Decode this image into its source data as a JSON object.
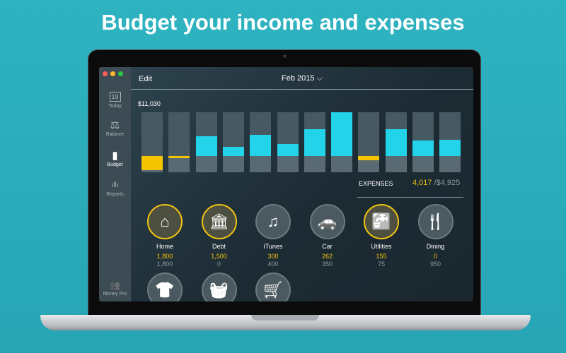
{
  "headline": "Budget your income and expenses",
  "sidebar": {
    "items": [
      {
        "label": "Today",
        "icon": "calendar-icon",
        "glyph": "19"
      },
      {
        "label": "Balance",
        "icon": "scales-icon",
        "glyph": "⚖"
      },
      {
        "label": "Budget",
        "icon": "battery-icon",
        "glyph": "▮"
      },
      {
        "label": "Reports",
        "icon": "bar-chart-icon",
        "glyph": "ıllı"
      }
    ],
    "footer": {
      "label": "Money Pro",
      "icon": "users-icon",
      "glyph": "👥"
    }
  },
  "header": {
    "edit": "Edit",
    "month": "Feb 2015 ⌵"
  },
  "chart": {
    "total": "$11,030",
    "bars": [
      {
        "color": "#f5c400",
        "level": -0.33
      },
      {
        "color": "#f5c400",
        "level": -0.05
      },
      {
        "color": "#22d3ea",
        "level": 0.45
      },
      {
        "color": "#22d3ea",
        "level": 0.21
      },
      {
        "color": "#22d3ea",
        "level": 0.48
      },
      {
        "color": "#22d3ea",
        "level": 0.27
      },
      {
        "color": "#22d3ea",
        "level": 0.61
      },
      {
        "color": "#22d3ea",
        "level": 1.0
      },
      {
        "color": "#f5c400",
        "level": -0.1
      },
      {
        "color": "#22d3ea",
        "level": 0.61
      },
      {
        "color": "#22d3ea",
        "level": 0.35
      },
      {
        "color": "#22d3ea",
        "level": 0.37
      }
    ]
  },
  "expenses": {
    "label": "EXPENSES",
    "spent": "4,017",
    "budget": " /$4,925"
  },
  "categories": [
    {
      "name": "Home",
      "spent": "1,800",
      "budget": "1,800",
      "icon": "house-icon",
      "glyph": "⌂",
      "full": true
    },
    {
      "name": "Debt",
      "spent": "1,500",
      "budget": "0",
      "icon": "bank-icon",
      "glyph": "🏛",
      "full": true
    },
    {
      "name": "iTunes",
      "spent": "300",
      "budget": "400",
      "icon": "music-note-icon",
      "glyph": "♫",
      "full": false
    },
    {
      "name": "Car",
      "spent": "262",
      "budget": "350",
      "icon": "car-icon",
      "glyph": "🚗",
      "full": false
    },
    {
      "name": "Utilities",
      "spent": "155",
      "budget": "75",
      "icon": "faucet-icon",
      "glyph": "🚰",
      "full": true
    },
    {
      "name": "Dining",
      "spent": "0",
      "budget": "950",
      "icon": "fork-knife-icon",
      "glyph": "🍴",
      "full": false
    },
    {
      "icon": "shirt-icon",
      "glyph": "👕",
      "full": false
    },
    {
      "icon": "basket-icon",
      "glyph": "🧺",
      "full": false
    },
    {
      "icon": "cart-icon",
      "glyph": "🛒",
      "full": false
    }
  ],
  "colors": {
    "accent": "#22d3ea",
    "warning": "#f5c400"
  }
}
